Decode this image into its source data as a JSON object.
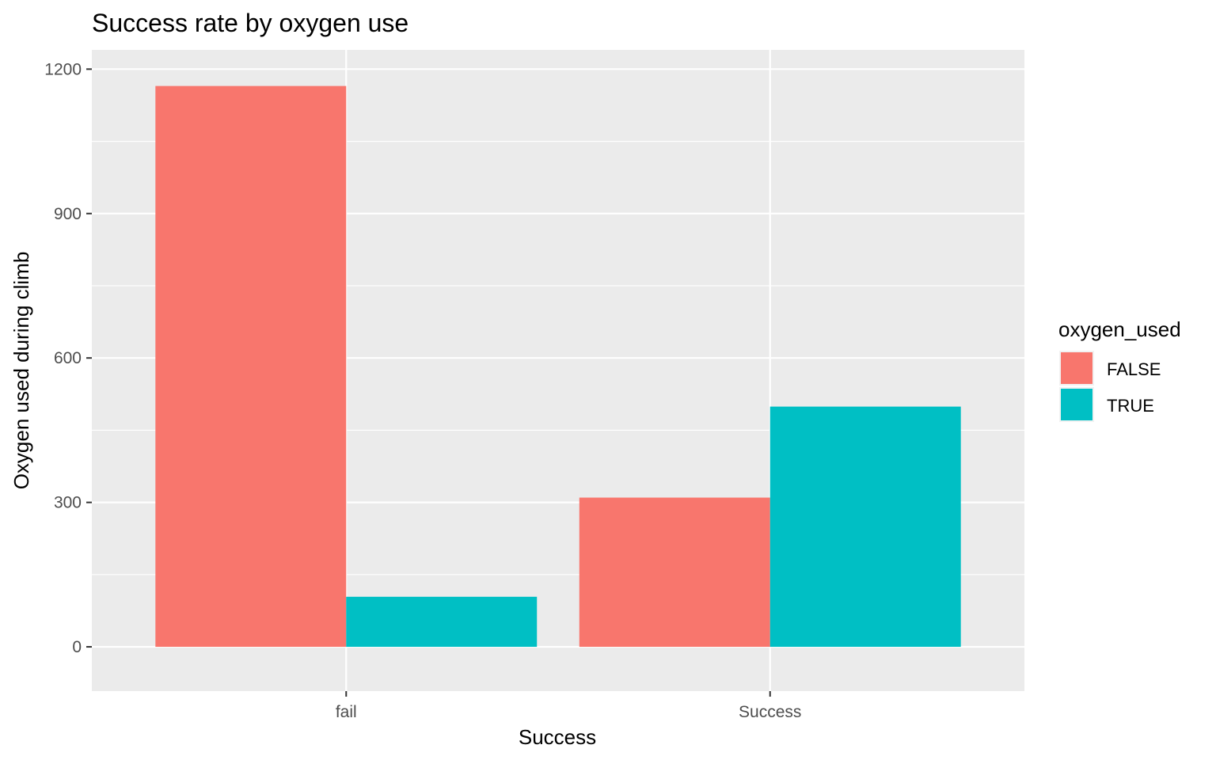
{
  "chart_data": {
    "type": "bar",
    "title": "Success rate by oxygen use",
    "xlabel": "Success",
    "ylabel": "Oxygen used during climb",
    "categories": [
      "fail",
      "Success"
    ],
    "series": [
      {
        "name": "FALSE",
        "values": [
          1165,
          310
        ],
        "color": "#F8766D"
      },
      {
        "name": "TRUE",
        "values": [
          104,
          499
        ],
        "color": "#00BFC4"
      }
    ],
    "ylim": [
      -92,
      1240
    ],
    "yticks": [
      0,
      300,
      600,
      900,
      1200
    ],
    "legend": {
      "title": "oxygen_used",
      "position": "right"
    },
    "grid": true,
    "panel_background": "#EBEBEB",
    "grid_color": "#FFFFFF"
  }
}
